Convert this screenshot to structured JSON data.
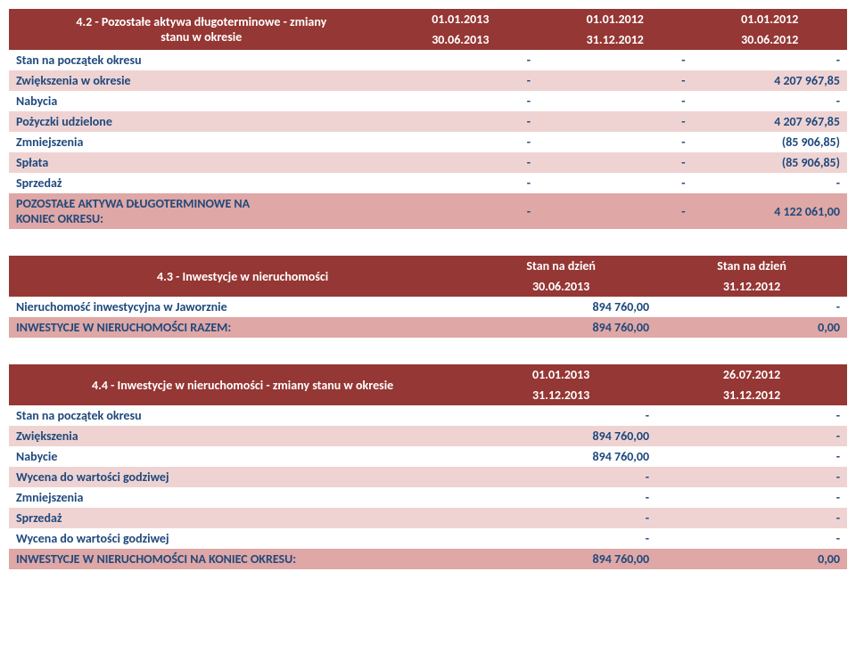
{
  "table42": {
    "title_line1": "4.2 - Pozostałe aktywa długoterminowe - zmiany",
    "title_line2": "stanu w okresie",
    "periods": [
      {
        "top": "01.01.2013",
        "bot": "30.06.2013"
      },
      {
        "top": "01.01.2012",
        "bot": "31.12.2012"
      },
      {
        "top": "01.01.2012",
        "bot": "30.06.2012"
      }
    ],
    "rows": [
      {
        "label": "Stan na początek okresu",
        "v": [
          "-",
          "-",
          "-"
        ],
        "cls": "normal"
      },
      {
        "label": "Zwiększenia w okresie",
        "v": [
          "-",
          "-",
          "4 207 967,85"
        ],
        "cls": "alt"
      },
      {
        "label": "Nabycia",
        "v": [
          "-",
          "-",
          "-"
        ],
        "cls": "normal"
      },
      {
        "label": "Pożyczki udzielone",
        "v": [
          "-",
          "-",
          "4 207 967,85"
        ],
        "cls": "alt"
      },
      {
        "label": "Zmniejszenia",
        "v": [
          "-",
          "-",
          "(85 906,85)"
        ],
        "cls": "normal"
      },
      {
        "label": "Spłata",
        "v": [
          "-",
          "-",
          "(85 906,85)"
        ],
        "cls": "alt"
      },
      {
        "label": "Sprzedaż",
        "v": [
          "-",
          "-",
          "-"
        ],
        "cls": "normal"
      }
    ],
    "total_label_line1": "POZOSTAŁE AKTYWA DŁUGOTERMINOWE NA",
    "total_label_line2": "KONIEC OKRESU:",
    "total_v": [
      "-",
      "-",
      "4 122 061,00"
    ]
  },
  "table43": {
    "title": "4.3 - Inwestycje w nieruchomości",
    "col_top": [
      "Stan na dzień",
      "Stan na dzień"
    ],
    "col_bot": [
      "30.06.2013",
      "31.12.2012"
    ],
    "rows": [
      {
        "label": "Nieruchomość inwestycyjna w Jaworznie",
        "v": [
          "894 760,00",
          "-"
        ],
        "cls": "normal"
      }
    ],
    "total_label": "INWESTYCJE W NIERUCHOMOŚCI RAZEM:",
    "total_v": [
      "894 760,00",
      "0,00"
    ]
  },
  "table44": {
    "title": "4.4 - Inwestycje w nieruchomości - zmiany stanu w okresie",
    "col_top": [
      "01.01.2013",
      "26.07.2012"
    ],
    "col_bot": [
      "31.12.2013",
      "31.12.2012"
    ],
    "rows": [
      {
        "label": "Stan na początek okresu",
        "v": [
          "-",
          "-"
        ],
        "cls": "normal"
      },
      {
        "label": "Zwiększenia",
        "v": [
          "894 760,00",
          "-"
        ],
        "cls": "alt"
      },
      {
        "label": "Nabycie",
        "v": [
          "894 760,00",
          "-"
        ],
        "cls": "normal"
      },
      {
        "label": "Wycena do wartości godziwej",
        "v": [
          "-",
          "-"
        ],
        "cls": "alt"
      },
      {
        "label": "Zmniejszenia",
        "v": [
          "-",
          "-"
        ],
        "cls": "normal"
      },
      {
        "label": "Sprzedaż",
        "v": [
          "-",
          "-"
        ],
        "cls": "alt"
      },
      {
        "label": "Wycena do wartości godziwej",
        "v": [
          "-",
          "-"
        ],
        "cls": "normal"
      }
    ],
    "total_label": "INWESTYCJE W NIERUCHOMOŚCI NA KONIEC OKRESU:",
    "total_v": [
      "894 760,00",
      "0,00"
    ]
  }
}
